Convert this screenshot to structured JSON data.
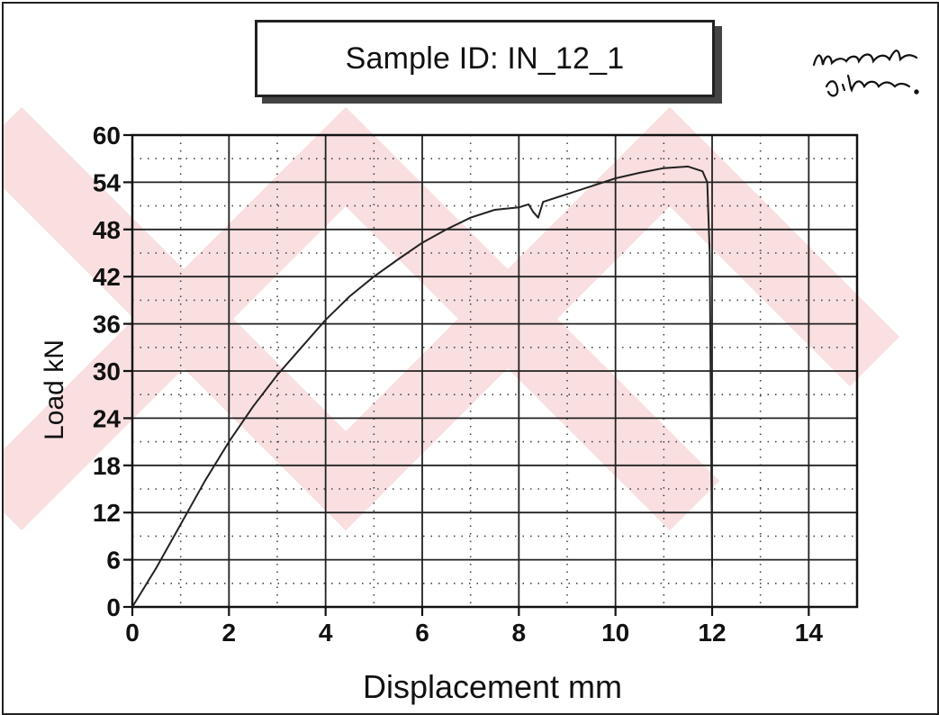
{
  "chart_data": {
    "type": "line",
    "title": "Sample ID: IN_12_1",
    "xlabel": "Displacement mm",
    "ylabel": "Load kN",
    "xlim": [
      0,
      15
    ],
    "ylim": [
      0,
      60
    ],
    "xticks": [
      0,
      2,
      4,
      6,
      8,
      10,
      12,
      14
    ],
    "yticks": [
      0,
      6,
      12,
      18,
      24,
      30,
      36,
      42,
      48,
      54,
      60
    ],
    "grid": true,
    "series": [
      {
        "x": [
          0,
          0.5,
          1,
          1.5,
          2,
          2.5,
          3,
          3.5,
          4,
          4.5,
          5,
          5.5,
          6,
          6.5,
          7,
          7.5,
          8,
          8.2,
          8.3,
          8.4,
          8.5,
          9,
          9.5,
          10,
          10.5,
          11,
          11.5,
          11.8,
          11.9,
          11.95,
          12.0
        ],
        "y": [
          0,
          5,
          10.5,
          16,
          21,
          25.5,
          29.5,
          33,
          36.5,
          39.5,
          42,
          44.2,
          46.3,
          48,
          49.5,
          50.5,
          50.8,
          51.2,
          50.2,
          49.5,
          51.5,
          52.5,
          53.5,
          54.5,
          55.2,
          55.8,
          56,
          55.4,
          54,
          45,
          5
        ]
      }
    ]
  },
  "signature_text": "Modal failure."
}
